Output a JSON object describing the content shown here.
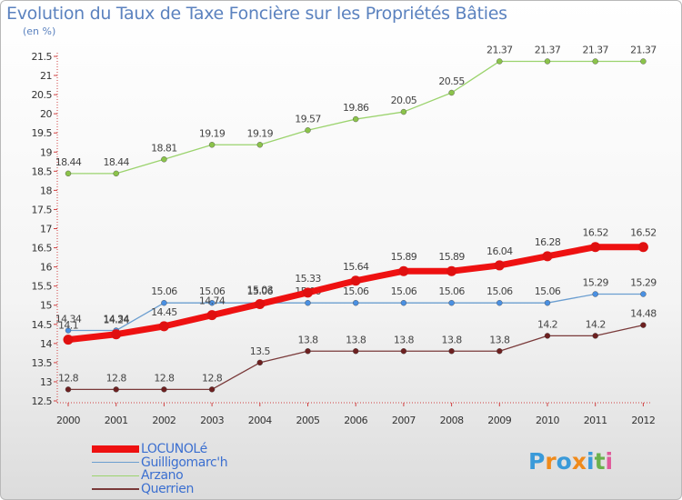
{
  "title": "Evolution du Taux de Taxe Foncière sur les Propriétés Bâties",
  "unit_label": "(en %)",
  "logo": {
    "letters": [
      "P",
      "r",
      "o",
      "x",
      "i",
      "t",
      "i"
    ],
    "colors": [
      "#3a9ad9",
      "#f08a1a",
      "#3a9ad9",
      "#f08a1a",
      "#3a9ad9",
      "#6ab04c",
      "#e05a9a"
    ]
  },
  "chart_data": {
    "type": "line",
    "title": "Evolution du Taux de Taxe Foncière sur les Propriétés Bâties",
    "ylabel": "(en %)",
    "xlabel": "",
    "ylim": [
      12.5,
      21.5
    ],
    "yticks": [
      "12.5",
      "13",
      "13.5",
      "14",
      "14.5",
      "15",
      "15.5",
      "16",
      "16.5",
      "17",
      "17.5",
      "18",
      "18.5",
      "19",
      "19.5",
      "20",
      "20.5",
      "21",
      "21.5"
    ],
    "grid": false,
    "legend_position": "bottom-left",
    "x": [
      "2000",
      "2001",
      "2002",
      "2003",
      "2004",
      "2005",
      "2006",
      "2007",
      "2008",
      "2009",
      "2010",
      "2011",
      "2012"
    ],
    "series": [
      {
        "name": "Arzano",
        "color": "#9bd36d",
        "marker": "#8bc34a",
        "width": 1.3,
        "values": [
          18.44,
          18.44,
          18.81,
          19.19,
          19.19,
          19.57,
          19.86,
          20.05,
          20.55,
          21.37,
          21.37,
          21.37,
          21.37
        ],
        "labels": [
          "18.44",
          "18.44",
          "18.81",
          "19.19",
          "19.19",
          "19.57",
          "19.86",
          "20.05",
          "20.55",
          "21.37",
          "21.37",
          "21.37",
          "21.37"
        ]
      },
      {
        "name": "Guilligomarc'h",
        "color": "#6b9ed0",
        "marker": "#4a90e2",
        "width": 1.3,
        "values": [
          14.34,
          14.34,
          15.06,
          15.06,
          15.06,
          15.06,
          15.06,
          15.06,
          15.06,
          15.06,
          15.06,
          15.29,
          15.29
        ],
        "labels": [
          "14.34",
          "14.34",
          "15.06",
          "15.06",
          "15.06",
          "15.06",
          "15.06",
          "15.06",
          "15.06",
          "15.06",
          "15.06",
          "15.29",
          "15.29"
        ]
      },
      {
        "name": "Querrien",
        "color": "#7a3a3a",
        "marker": "#6d2020",
        "width": 1.3,
        "values": [
          12.8,
          12.8,
          12.8,
          12.8,
          13.5,
          13.8,
          13.8,
          13.8,
          13.8,
          13.8,
          14.2,
          14.2,
          14.48
        ],
        "labels": [
          "12.8",
          "12.8",
          "12.8",
          "12.8",
          "13.5",
          "13.8",
          "13.8",
          "13.8",
          "13.8",
          "13.8",
          "14.2",
          "14.2",
          "14.48"
        ]
      },
      {
        "name": "LOCUNOLé",
        "color": "#ee1111",
        "marker": "#e01010",
        "width": 7,
        "values": [
          14.1,
          14.24,
          14.45,
          14.74,
          15.03,
          15.33,
          15.64,
          15.89,
          15.89,
          16.04,
          16.28,
          16.52,
          16.52
        ],
        "labels": [
          "14.1",
          "14.24",
          "14.45",
          "14.74",
          "15.03",
          "15.33",
          "15.64",
          "15.89",
          "15.89",
          "16.04",
          "16.28",
          "16.52",
          "16.52"
        ]
      }
    ],
    "legend_order": [
      "LOCUNOLé",
      "Guilligomarc'h",
      "Arzano",
      "Querrien"
    ]
  }
}
